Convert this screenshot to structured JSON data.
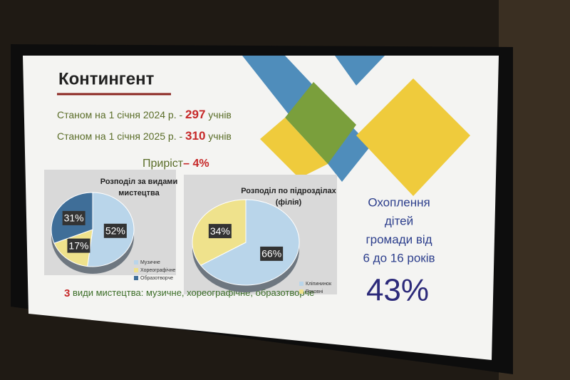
{
  "slide": {
    "title": "Контингент",
    "line1": {
      "text": "Станом на 1 січня 2024 р. -",
      "number": 297,
      "unit": "учнів"
    },
    "line2": {
      "text": "Станом на 1 січня 2025 р. -",
      "number": 310,
      "unit": "учнів"
    },
    "growth": {
      "text": "Приріст",
      "value": "– 4%"
    },
    "coverage": {
      "lines": [
        "Охоплення",
        "дітей",
        "громади від",
        "6 до 16 років"
      ],
      "value": "43%"
    },
    "footer": {
      "number": 3,
      "text": "види мистецтва: музичне, хореографічне, образотворче"
    }
  },
  "chart_data": [
    {
      "type": "pie",
      "title": [
        "Розподіл за видами",
        "мистецтва"
      ],
      "categories": [
        "Музичне",
        "Хореографічне",
        "Образотворче"
      ],
      "values": [
        52,
        17,
        31
      ],
      "value_labels": [
        "52%",
        "17%",
        "31%"
      ],
      "colors": [
        "#b9d5ea",
        "#efe28c",
        "#3f6e98"
      ]
    },
    {
      "type": "pie",
      "title": [
        "Розподіл по підрозділах",
        "(філія)"
      ],
      "categories": [
        "Кліпининок",
        "Роковні"
      ],
      "values": [
        66,
        34
      ],
      "value_labels": [
        "66%",
        "34%"
      ],
      "colors": [
        "#b9d5ea",
        "#efe28c"
      ]
    }
  ]
}
